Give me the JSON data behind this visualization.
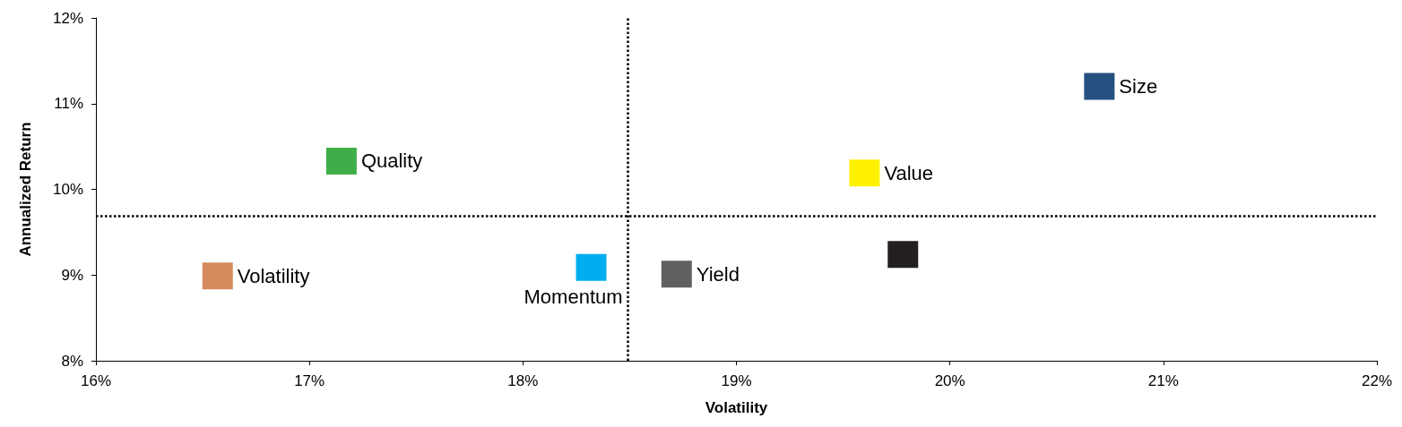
{
  "chart_data": {
    "type": "scatter",
    "xlabel": "Volatility",
    "ylabel": "Annualized Return",
    "marker": "square",
    "grid": false,
    "legend": false,
    "xlim": [
      16,
      22
    ],
    "xticks": [
      {
        "value": 16,
        "label": "16%"
      },
      {
        "value": 17,
        "label": "17%"
      },
      {
        "value": 18,
        "label": "18%"
      },
      {
        "value": 19,
        "label": "19%"
      },
      {
        "value": 20,
        "label": "20%"
      },
      {
        "value": 21,
        "label": "21%"
      },
      {
        "value": 22,
        "label": "22%"
      }
    ],
    "ylim": [
      8,
      12
    ],
    "yticks": [
      {
        "value": 8,
        "label": "8%"
      },
      {
        "value": 9,
        "label": "9%"
      },
      {
        "value": 10,
        "label": "10%"
      },
      {
        "value": 11,
        "label": "11%"
      },
      {
        "value": 12,
        "label": "12%"
      }
    ],
    "series": [
      {
        "name": "Size",
        "color": "#25507f",
        "x": [
          20.7
        ],
        "values": [
          11.2
        ]
      },
      {
        "name": "Quality",
        "color": "#3fae49",
        "x": [
          17.15
        ],
        "values": [
          10.33
        ]
      },
      {
        "name": "Value",
        "color": "#fff200",
        "x": [
          19.6
        ],
        "values": [
          10.19
        ]
      },
      {
        "name": "Volatility",
        "color": "#d58b5c",
        "x": [
          16.57
        ],
        "values": [
          8.99
        ]
      },
      {
        "name": "Momentum",
        "color": "#00adef",
        "x": [
          18.32
        ],
        "values": [
          9.09
        ]
      },
      {
        "name": "Yield",
        "color": "#606060",
        "x": [
          18.72
        ],
        "values": [
          9.01
        ]
      },
      {
        "color": "#231f20",
        "x": [
          19.78
        ],
        "values": [
          9.24
        ]
      }
    ],
    "ref_lines": [
      {
        "axis": "x",
        "value": 18.49,
        "line_style": "dotted",
        "color": "#000000"
      },
      {
        "axis": "y",
        "value": 9.69,
        "line_style": "dotted",
        "color": "#000000"
      }
    ]
  }
}
